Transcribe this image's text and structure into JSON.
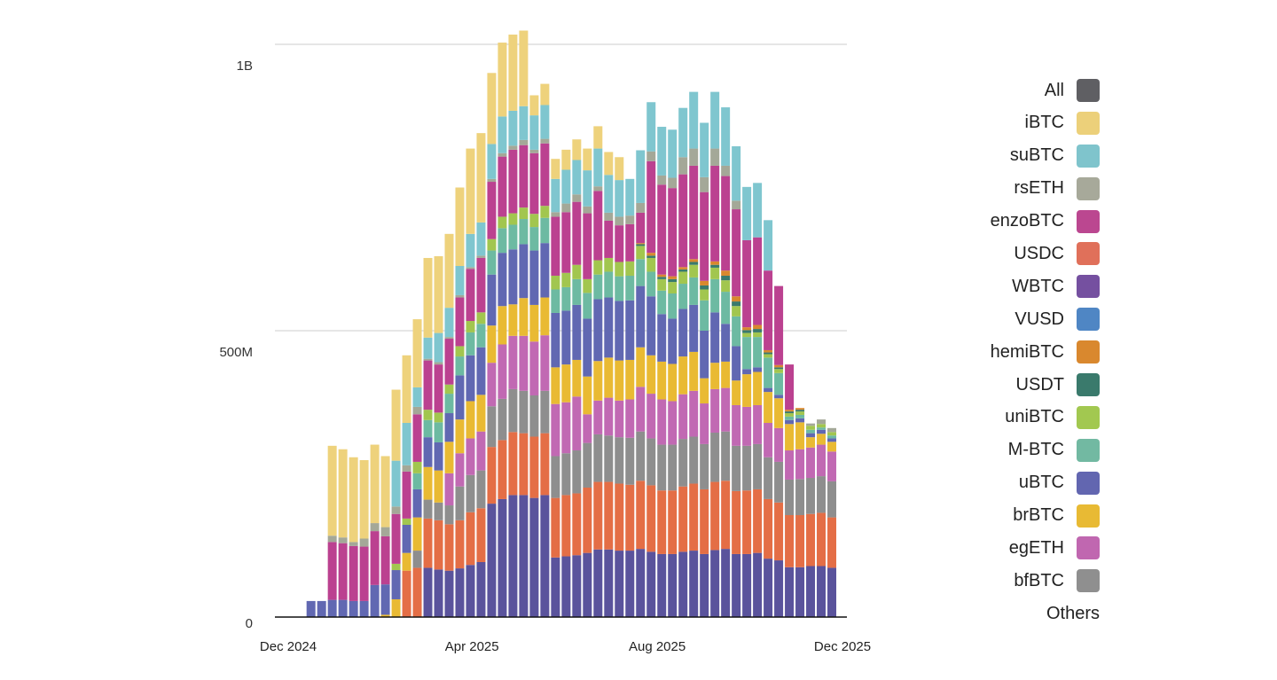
{
  "chart_data": {
    "type": "bar",
    "stacked": true,
    "title": "",
    "xlabel": "",
    "ylabel": "",
    "ylim": [
      0,
      1000000000
    ],
    "value_unit": "millions",
    "yticks": [
      {
        "value": 0,
        "label": "0"
      },
      {
        "value": 500,
        "label": "500M"
      },
      {
        "value": 1000,
        "label": "1B"
      }
    ],
    "xticks": [
      {
        "date": "2024-12-01",
        "label": "Dec 2024"
      },
      {
        "date": "2025-04-01",
        "label": "Apr 2025"
      },
      {
        "date": "2025-08-01",
        "label": "Aug 2025"
      },
      {
        "date": "2025-12-01",
        "label": "Dec 2025"
      }
    ],
    "grid": true,
    "legend_placement": "right",
    "x": [
      "2024-12-16",
      "2024-12-23",
      "2024-12-30",
      "2025-01-06",
      "2025-01-13",
      "2025-01-20",
      "2025-01-27",
      "2025-02-03",
      "2025-02-10",
      "2025-02-17",
      "2025-02-24",
      "2025-03-03",
      "2025-03-10",
      "2025-03-17",
      "2025-03-24",
      "2025-03-31",
      "2025-04-07",
      "2025-04-14",
      "2025-04-21",
      "2025-04-28",
      "2025-05-05",
      "2025-05-12",
      "2025-05-19",
      "2025-05-26",
      "2025-06-02",
      "2025-06-09",
      "2025-06-16",
      "2025-06-23",
      "2025-06-30",
      "2025-07-07",
      "2025-07-14",
      "2025-07-21",
      "2025-07-28",
      "2025-08-04",
      "2025-08-11",
      "2025-08-18",
      "2025-08-25",
      "2025-09-01",
      "2025-09-08",
      "2025-09-15",
      "2025-09-22",
      "2025-09-29",
      "2025-10-06",
      "2025-10-13",
      "2025-10-20",
      "2025-10-27",
      "2025-11-03",
      "2025-11-10",
      "2025-11-17",
      "2025-11-24"
    ],
    "series": [
      {
        "name": "WBTC",
        "color": "#5a539c",
        "values": [
          0,
          0,
          0,
          0,
          0,
          0,
          0,
          0,
          0,
          0,
          0,
          86,
          83,
          81,
          85,
          91,
          96,
          198,
          206,
          213,
          213,
          208,
          213,
          104,
          106,
          108,
          112,
          118,
          118,
          116,
          116,
          119,
          114,
          110,
          110,
          114,
          116,
          110,
          117,
          119,
          110,
          110,
          112,
          102,
          99,
          87,
          87,
          89,
          89,
          86
        ]
      },
      {
        "name": "USDC",
        "color": "#e46e46",
        "values": [
          0,
          0,
          0,
          0,
          0,
          0,
          0,
          0,
          0,
          81,
          86,
          86,
          86,
          81,
          84,
          92,
          94,
          99,
          103,
          110,
          108,
          107,
          108,
          104,
          107,
          108,
          114,
          118,
          118,
          117,
          115,
          119,
          116,
          111,
          111,
          114,
          117,
          113,
          119,
          119,
          110,
          111,
          111,
          104,
          101,
          91,
          91,
          91,
          93,
          88
        ]
      },
      {
        "name": "bfBTC",
        "color": "#8e8e8e",
        "values": [
          0,
          0,
          0,
          0,
          0,
          0,
          0,
          0,
          0,
          0,
          30,
          33,
          31,
          33,
          59,
          65,
          66,
          71,
          72,
          75,
          74,
          72,
          74,
          73,
          73,
          75,
          78,
          83,
          81,
          81,
          82,
          86,
          82,
          80,
          80,
          83,
          82,
          79,
          86,
          86,
          79,
          78,
          79,
          73,
          71,
          62,
          63,
          63,
          64,
          63
        ]
      },
      {
        "name": "egETH",
        "color": "#c169b3",
        "values": [
          0,
          0,
          0,
          0,
          0,
          0,
          0,
          0,
          0,
          0,
          0,
          0,
          0,
          56,
          58,
          64,
          68,
          76,
          95,
          93,
          96,
          94,
          97,
          91,
          89,
          94,
          50,
          59,
          66,
          64,
          67,
          78,
          78,
          79,
          76,
          78,
          80,
          71,
          76,
          76,
          71,
          68,
          68,
          60,
          59,
          51,
          52,
          53,
          55,
          52
        ]
      },
      {
        "name": "brBTC",
        "color": "#e9ba33",
        "values": [
          0,
          0,
          0,
          0,
          0,
          0,
          0,
          4,
          31,
          31,
          58,
          57,
          56,
          55,
          59,
          65,
          64,
          65,
          67,
          55,
          66,
          64,
          66,
          64,
          66,
          64,
          66,
          69,
          70,
          70,
          69,
          69,
          67,
          66,
          65,
          66,
          68,
          44,
          46,
          46,
          43,
          57,
          58,
          54,
          52,
          46,
          47,
          18,
          19,
          17
        ]
      },
      {
        "name": "uBTC",
        "color": "#6168b2",
        "values": [
          28,
          28,
          30,
          30,
          28,
          28,
          56,
          53,
          51,
          49,
          49,
          52,
          49,
          50,
          77,
          80,
          83,
          89,
          93,
          96,
          94,
          95,
          95,
          95,
          94,
          96,
          101,
          108,
          105,
          104,
          104,
          107,
          103,
          83,
          79,
          83,
          82,
          83,
          88,
          66,
          60,
          9,
          8,
          7,
          6,
          7,
          7,
          7,
          7,
          6
        ]
      },
      {
        "name": "M-BTC",
        "color": "#6dbaa2",
        "values": [
          0,
          0,
          0,
          0,
          0,
          0,
          0,
          0,
          0,
          0,
          28,
          30,
          35,
          34,
          33,
          40,
          41,
          42,
          43,
          43,
          44,
          41,
          44,
          41,
          41,
          45,
          45,
          43,
          45,
          43,
          43,
          47,
          43,
          41,
          44,
          44,
          48,
          53,
          58,
          56,
          52,
          56,
          53,
          53,
          38,
          6,
          6,
          6,
          4,
          5
        ]
      },
      {
        "name": "uniBTC",
        "color": "#a2c64f",
        "values": [
          0,
          0,
          0,
          0,
          0,
          0,
          0,
          0,
          11,
          11,
          20,
          18,
          17,
          16,
          18,
          20,
          20,
          20,
          20,
          20,
          20,
          23,
          21,
          24,
          25,
          25,
          24,
          25,
          24,
          25,
          25,
          23,
          24,
          20,
          20,
          21,
          22,
          19,
          20,
          20,
          18,
          7,
          8,
          6,
          7,
          6,
          6,
          7,
          6,
          6
        ]
      },
      {
        "name": "USDT",
        "color": "#3a7a6c",
        "values": [
          0,
          0,
          0,
          0,
          0,
          0,
          0,
          0,
          0,
          0,
          0,
          0,
          0,
          0,
          0,
          0,
          0,
          0,
          0,
          0,
          0,
          0,
          0,
          0,
          0,
          0,
          0,
          0,
          0,
          0,
          0,
          3,
          4,
          4,
          5,
          4,
          5,
          7,
          5,
          8,
          8,
          5,
          6,
          3,
          3,
          3,
          3,
          0,
          0,
          0
        ]
      },
      {
        "name": "hemiBTC",
        "color": "#d9882e",
        "values": [
          0,
          0,
          0,
          0,
          0,
          0,
          0,
          0,
          0,
          0,
          0,
          0,
          0,
          0,
          0,
          0,
          0,
          0,
          0,
          0,
          0,
          0,
          0,
          0,
          0,
          0,
          0,
          0,
          0,
          0,
          0,
          2,
          5,
          4,
          5,
          4,
          5,
          8,
          6,
          9,
          9,
          5,
          7,
          4,
          4,
          3,
          3,
          0,
          0,
          0
        ]
      },
      {
        "name": "VUSD",
        "color": "#4f86c4",
        "values": [
          0,
          0,
          0,
          0,
          0,
          0,
          0,
          0,
          0,
          0,
          0,
          0,
          0,
          0,
          0,
          0,
          0,
          0,
          0,
          0,
          0,
          0,
          0,
          0,
          0,
          0,
          0,
          0,
          0,
          0,
          0,
          0,
          0,
          0,
          0,
          0,
          0,
          0,
          0,
          0,
          0,
          0,
          0,
          0,
          0,
          0,
          0,
          0,
          0,
          0
        ]
      },
      {
        "name": "enzoBTC",
        "color": "#bb4190",
        "values": [
          0,
          0,
          101,
          99,
          96,
          95,
          94,
          84,
          87,
          82,
          83,
          86,
          84,
          80,
          85,
          91,
          95,
          100,
          105,
          111,
          109,
          106,
          109,
          103,
          106,
          110,
          115,
          121,
          65,
          64,
          65,
          53,
          160,
          157,
          154,
          162,
          163,
          155,
          167,
          165,
          152,
          152,
          153,
          139,
          138,
          79,
          0,
          0,
          0,
          0
        ]
      },
      {
        "name": "rsETH",
        "color": "#a4a898",
        "values": [
          0,
          0,
          11,
          10,
          7,
          14,
          14,
          16,
          13,
          11,
          13,
          3,
          4,
          3,
          4,
          3,
          4,
          5,
          6,
          7,
          9,
          6,
          8,
          8,
          15,
          13,
          12,
          8,
          14,
          15,
          15,
          17,
          17,
          16,
          18,
          30,
          30,
          26,
          30,
          18,
          15,
          0,
          0,
          0,
          0,
          0,
          0,
          4,
          8,
          7
        ]
      },
      {
        "name": "suBTC",
        "color": "#7fc6cf",
        "values": [
          0,
          0,
          0,
          0,
          0,
          0,
          0,
          0,
          80,
          74,
          34,
          37,
          51,
          51,
          51,
          58,
          58,
          61,
          64,
          61,
          59,
          60,
          59,
          58,
          59,
          60,
          63,
          66,
          66,
          64,
          64,
          92,
          86,
          85,
          84,
          86,
          99,
          95,
          99,
          102,
          95,
          93,
          95,
          88,
          0,
          0,
          0,
          0,
          0,
          0
        ]
      },
      {
        "name": "iBTC",
        "color": "#eed27c",
        "values": [
          0,
          0,
          157,
          154,
          148,
          137,
          137,
          124,
          124,
          118,
          119,
          139,
          134,
          129,
          137,
          149,
          156,
          124,
          129,
          133,
          132,
          35,
          37,
          35,
          35,
          36,
          38,
          39,
          40,
          40,
          0,
          0,
          0,
          0,
          0,
          0,
          0,
          0,
          0,
          0,
          0,
          0,
          0,
          0,
          0,
          0,
          0,
          0,
          0,
          0
        ]
      }
    ]
  },
  "legend": {
    "items": [
      {
        "label": "All",
        "color": "#5f5f63"
      },
      {
        "label": "iBTC",
        "color": "#ecd07a"
      },
      {
        "label": "suBTC",
        "color": "#7fc4cc"
      },
      {
        "label": "rsETH",
        "color": "#a7a99a"
      },
      {
        "label": "enzoBTC",
        "color": "#bb4790"
      },
      {
        "label": "USDC",
        "color": "#e0705a"
      },
      {
        "label": "WBTC",
        "color": "#7550a0"
      },
      {
        "label": "VUSD",
        "color": "#4f86c4"
      },
      {
        "label": "hemiBTC",
        "color": "#d9882e"
      },
      {
        "label": "USDT",
        "color": "#3a7a6c"
      },
      {
        "label": "uniBTC",
        "color": "#a2c850"
      },
      {
        "label": "M-BTC",
        "color": "#72b9a2"
      },
      {
        "label": "uBTC",
        "color": "#6266b0"
      },
      {
        "label": "brBTC",
        "color": "#e8ba34"
      },
      {
        "label": "egETH",
        "color": "#c067b0"
      },
      {
        "label": "bfBTC",
        "color": "#8f8f8f"
      },
      {
        "label": "Others",
        "color": ""
      }
    ]
  }
}
